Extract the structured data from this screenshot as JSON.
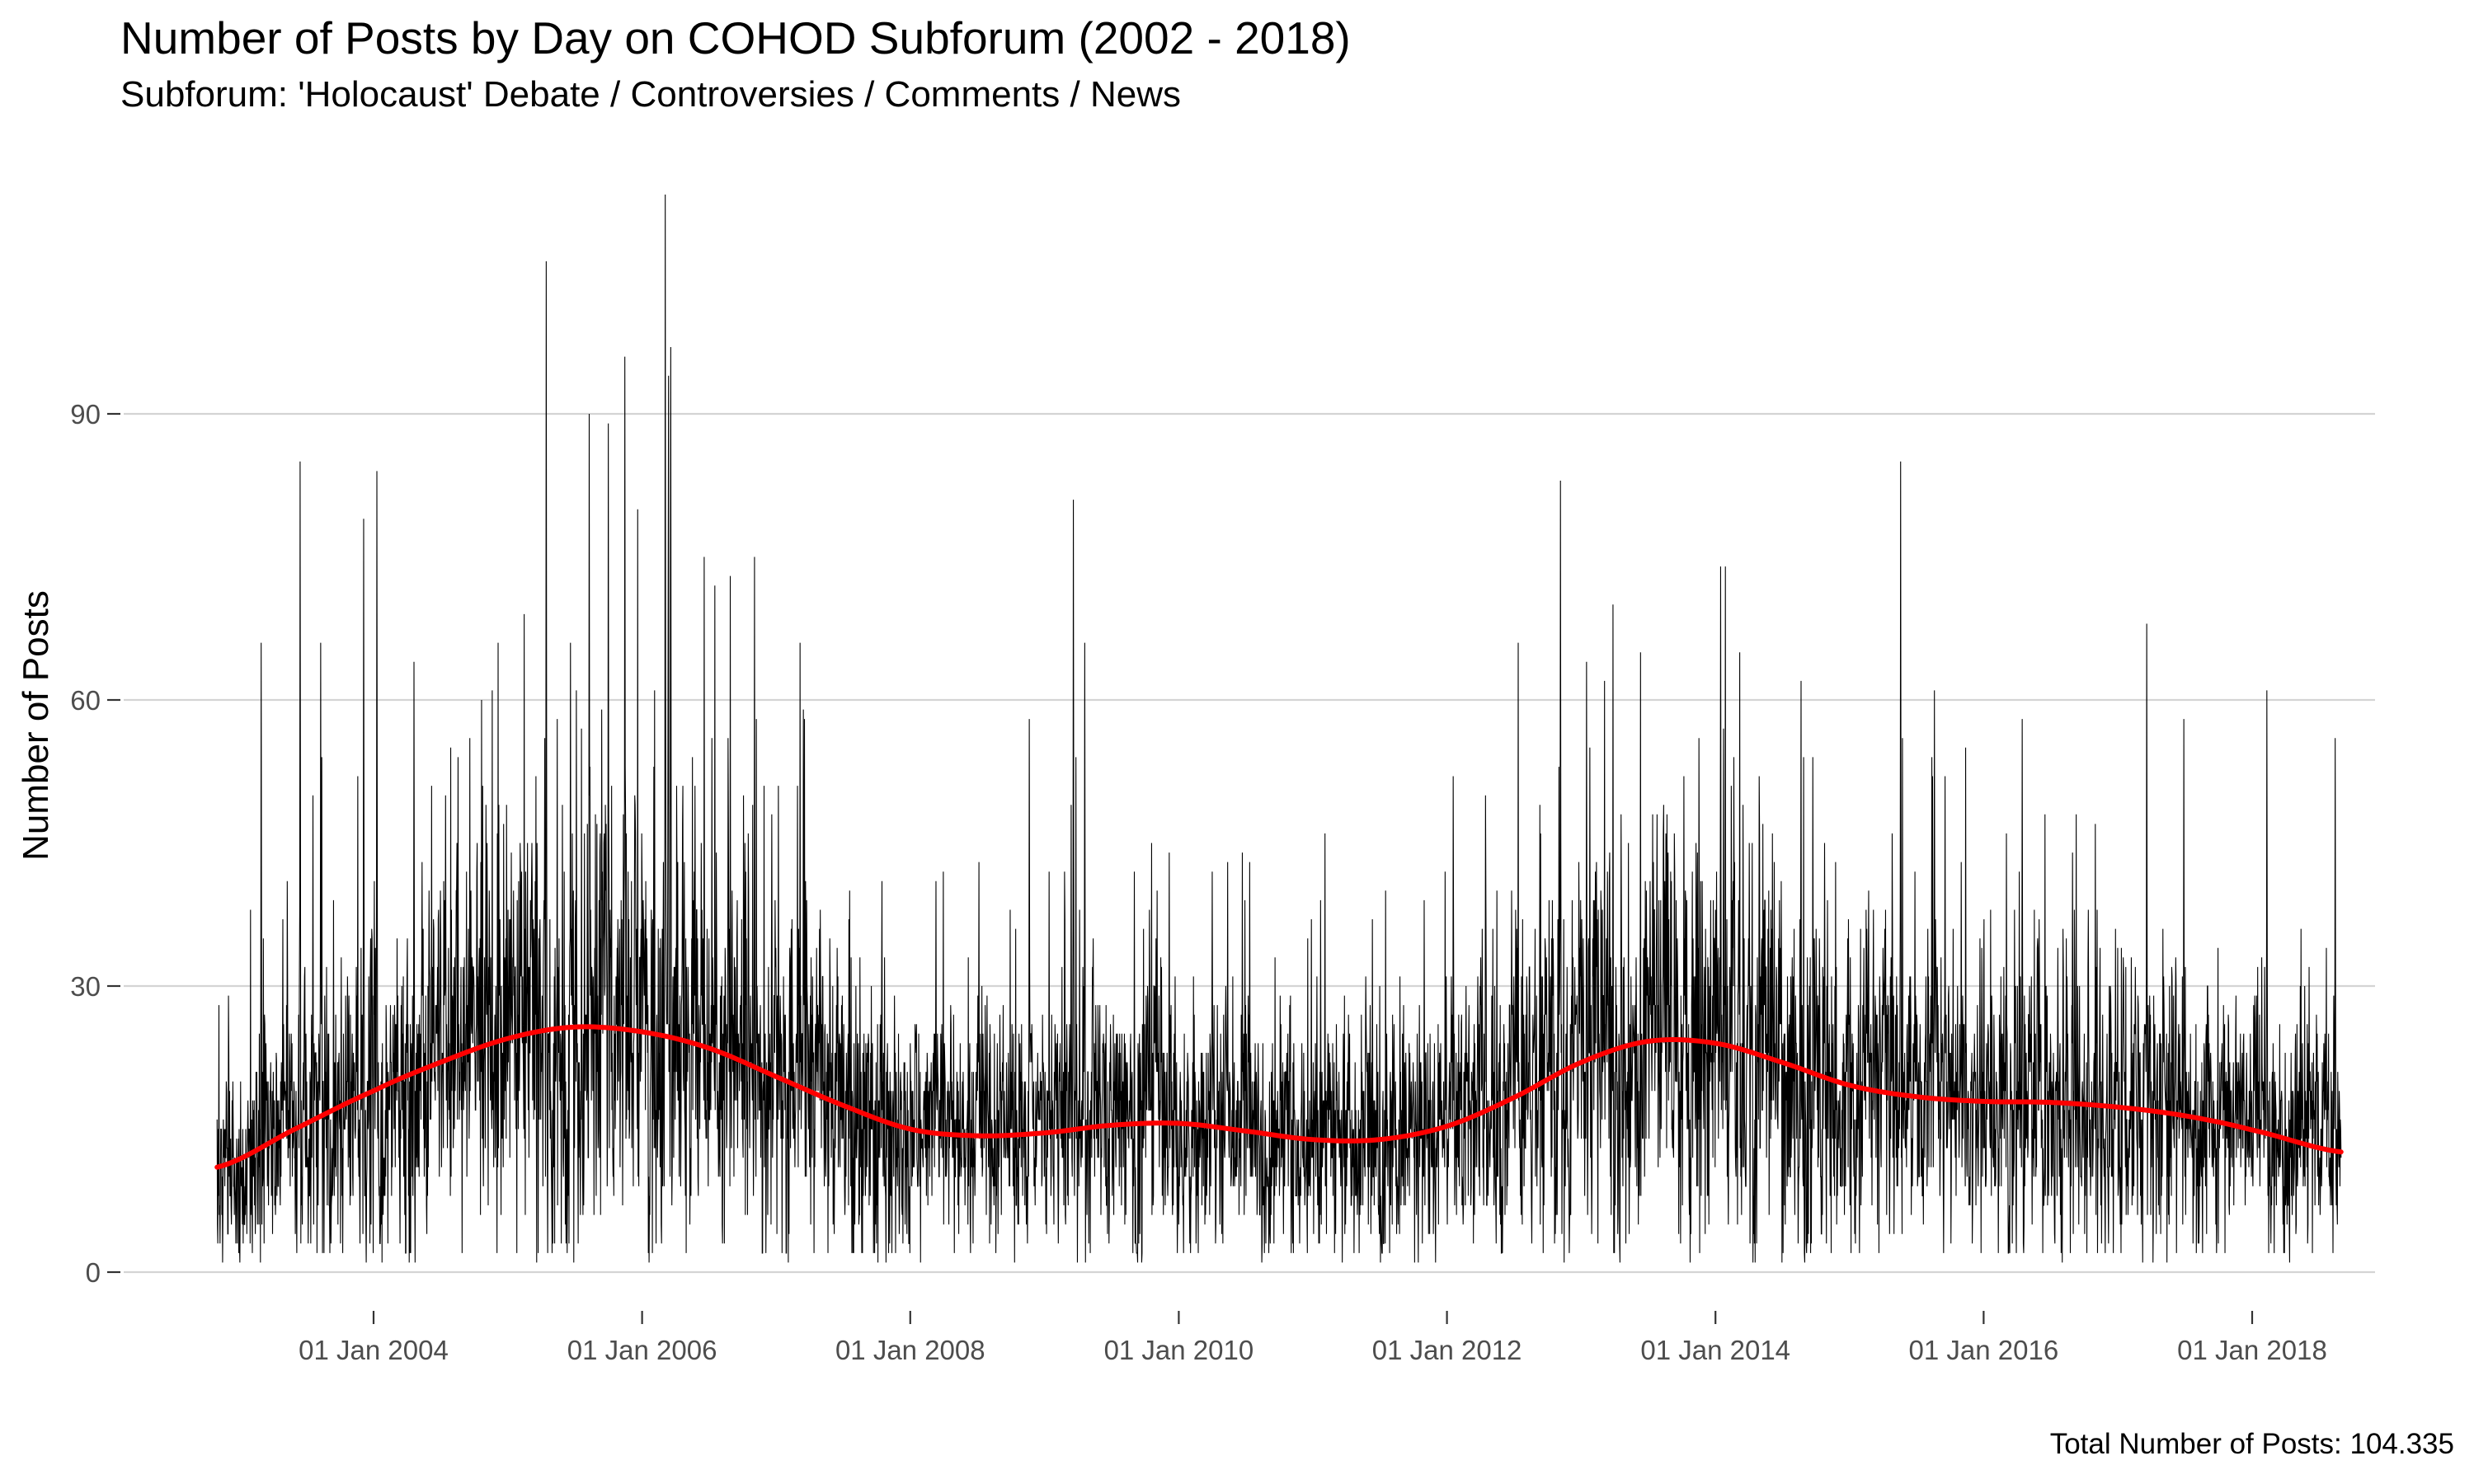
{
  "chart_data": {
    "type": "line",
    "title": "Number of Posts by Day on COHOD Subforum (2002 - 2018)",
    "subtitle": "Subforum: 'Holocaust' Debate / Controversies / Comments / News",
    "xlabel": "",
    "ylabel": "Number of Posts",
    "caption": "Total Number of Posts: 104.335",
    "x_range": [
      "2002-11-01",
      "2018-08-31"
    ],
    "ylim": [
      0,
      113
    ],
    "y_ticks": [
      0,
      30,
      60,
      90
    ],
    "x_ticks": [
      {
        "date": "2004-01-01",
        "label": "01 Jan 2004"
      },
      {
        "date": "2006-01-01",
        "label": "01 Jan 2006"
      },
      {
        "date": "2008-01-01",
        "label": "01 Jan 2008"
      },
      {
        "date": "2010-01-01",
        "label": "01 Jan 2010"
      },
      {
        "date": "2012-01-01",
        "label": "01 Jan 2012"
      },
      {
        "date": "2014-01-01",
        "label": "01 Jan 2014"
      },
      {
        "date": "2016-01-01",
        "label": "01 Jan 2016"
      },
      {
        "date": "2018-01-01",
        "label": "01 Jan 2018"
      }
    ],
    "grid": {
      "horizontal_major": true,
      "vertical": false
    },
    "series": [
      {
        "name": "",
        "kind": "daily_posts",
        "color": "#000000",
        "trend_anchors": [
          {
            "date": "2002-11-01",
            "value": 11
          },
          {
            "date": "2003-06-01",
            "value": 15
          },
          {
            "date": "2004-01-01",
            "value": 19
          },
          {
            "date": "2004-07-01",
            "value": 22
          },
          {
            "date": "2005-01-01",
            "value": 24.5
          },
          {
            "date": "2005-07-01",
            "value": 25.7
          },
          {
            "date": "2006-01-01",
            "value": 25.2
          },
          {
            "date": "2006-07-01",
            "value": 23.5
          },
          {
            "date": "2007-01-01",
            "value": 20.5
          },
          {
            "date": "2007-07-01",
            "value": 17.5
          },
          {
            "date": "2008-01-01",
            "value": 15
          },
          {
            "date": "2008-07-01",
            "value": 14.3
          },
          {
            "date": "2009-01-01",
            "value": 14.6
          },
          {
            "date": "2009-07-01",
            "value": 15.4
          },
          {
            "date": "2010-01-01",
            "value": 15.6
          },
          {
            "date": "2010-07-01",
            "value": 14.8
          },
          {
            "date": "2011-01-01",
            "value": 13.9
          },
          {
            "date": "2011-07-01",
            "value": 13.9
          },
          {
            "date": "2012-01-01",
            "value": 15.3
          },
          {
            "date": "2012-07-01",
            "value": 18.3
          },
          {
            "date": "2013-01-01",
            "value": 22
          },
          {
            "date": "2013-07-01",
            "value": 24.2
          },
          {
            "date": "2014-01-01",
            "value": 24
          },
          {
            "date": "2014-07-01",
            "value": 22
          },
          {
            "date": "2015-01-01",
            "value": 19.6
          },
          {
            "date": "2015-07-01",
            "value": 18.4
          },
          {
            "date": "2016-01-01",
            "value": 17.9
          },
          {
            "date": "2016-07-01",
            "value": 17.8
          },
          {
            "date": "2017-01-01",
            "value": 17.3
          },
          {
            "date": "2017-07-01",
            "value": 16.4
          },
          {
            "date": "2018-01-01",
            "value": 14.9
          },
          {
            "date": "2018-08-31",
            "value": 12.6
          }
        ],
        "notable_peaks": [
          {
            "date": "2003-03-01",
            "value": 66
          },
          {
            "date": "2003-06-15",
            "value": 85
          },
          {
            "date": "2003-08-10",
            "value": 66
          },
          {
            "date": "2003-12-05",
            "value": 79
          },
          {
            "date": "2004-01-10",
            "value": 84
          },
          {
            "date": "2004-04-20",
            "value": 64
          },
          {
            "date": "2005-04-15",
            "value": 106
          },
          {
            "date": "2005-06-20",
            "value": 66
          },
          {
            "date": "2005-08-10",
            "value": 90
          },
          {
            "date": "2005-10-01",
            "value": 89
          },
          {
            "date": "2005-11-15",
            "value": 96
          },
          {
            "date": "2006-03-05",
            "value": 113
          },
          {
            "date": "2006-03-20",
            "value": 97
          },
          {
            "date": "2008-11-20",
            "value": 58
          },
          {
            "date": "2009-03-20",
            "value": 81
          },
          {
            "date": "2009-04-20",
            "value": 66
          },
          {
            "date": "2012-11-05",
            "value": 83
          },
          {
            "date": "2013-01-15",
            "value": 64
          },
          {
            "date": "2014-01-15",
            "value": 74
          },
          {
            "date": "2015-05-20",
            "value": 85
          },
          {
            "date": "2015-08-20",
            "value": 61
          },
          {
            "date": "2016-04-15",
            "value": 58
          },
          {
            "date": "2017-03-20",
            "value": 68
          },
          {
            "date": "2018-02-10",
            "value": 61
          },
          {
            "date": "2018-08-15",
            "value": 56
          }
        ]
      },
      {
        "name": "",
        "kind": "smoothed_trend",
        "color": "#ff0000"
      }
    ]
  }
}
